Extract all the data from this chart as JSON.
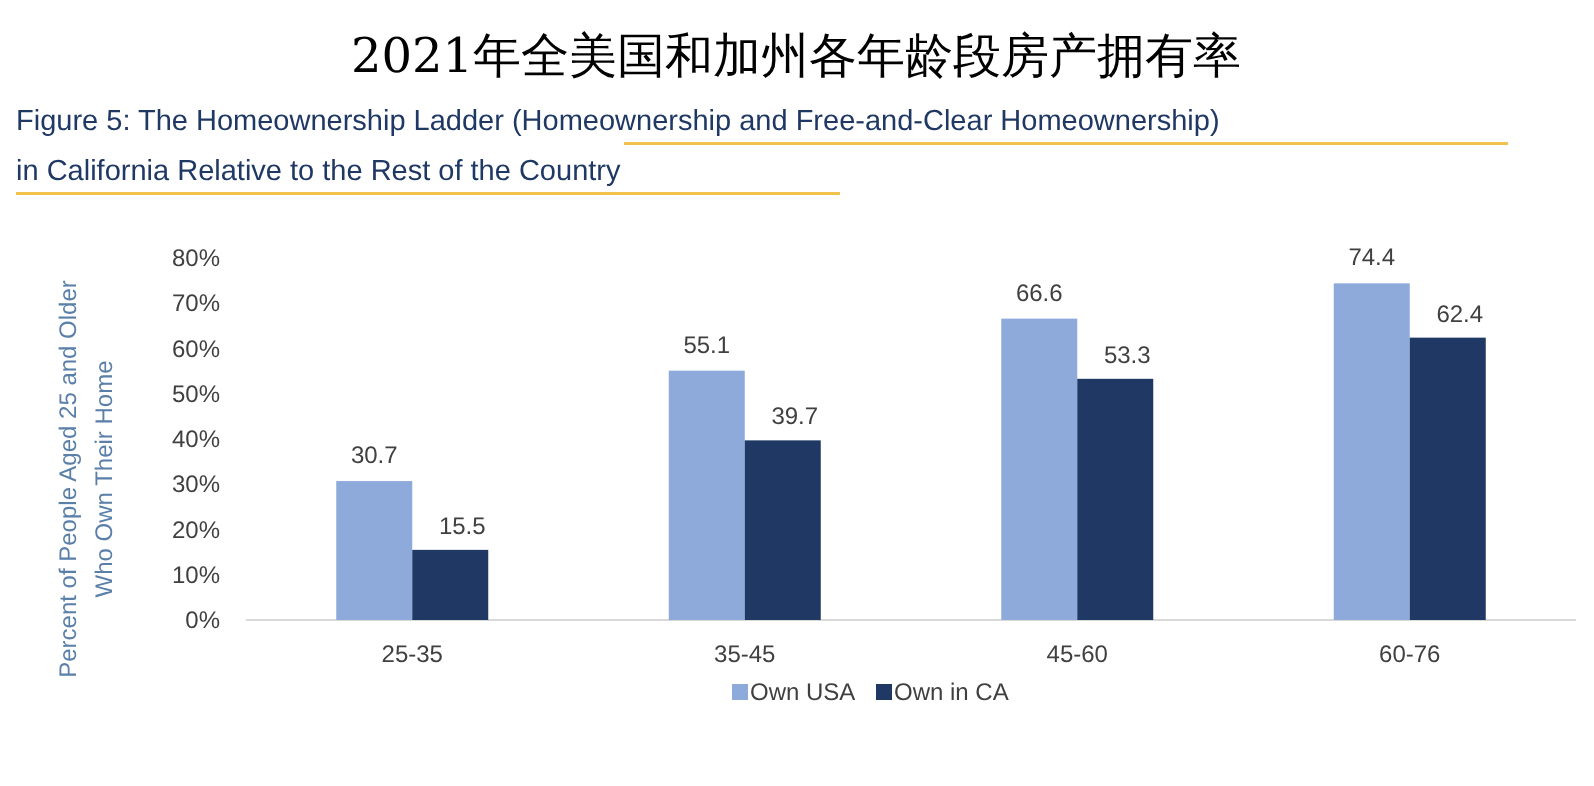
{
  "chart_data": {
    "type": "bar",
    "title": "2021年全美国和加州各年龄段房产拥有率",
    "subtitle": "Figure 5: The Homeownership Ladder (Homeownership and Free-and-Clear Homeownership) in California Relative to the Rest of the Country",
    "ylabel": "Percent of People Aged 25 and Older Who Own Their Home",
    "categories": [
      "25-35",
      "35-45",
      "45-60",
      "60-76"
    ],
    "series": [
      {
        "name": "Own USA",
        "color": "#8eaadb",
        "values": [
          30.7,
          55.1,
          66.6,
          74.4
        ]
      },
      {
        "name": "Own in CA",
        "color": "#1f3864",
        "values": [
          15.5,
          39.7,
          53.3,
          62.4
        ]
      }
    ],
    "ylim": [
      0,
      80
    ],
    "yticks": [
      {
        "value": 0,
        "label": "0%"
      },
      {
        "value": 10,
        "label": "10%"
      },
      {
        "value": 20,
        "label": "20%"
      },
      {
        "value": 30,
        "label": "30%"
      },
      {
        "value": 40,
        "label": "40%"
      },
      {
        "value": 50,
        "label": "50%"
      },
      {
        "value": 60,
        "label": "60%"
      },
      {
        "value": 70,
        "label": "70%"
      },
      {
        "value": 80,
        "label": "80%"
      }
    ],
    "data_labels": true,
    "grid": false,
    "legend": "bottom"
  }
}
